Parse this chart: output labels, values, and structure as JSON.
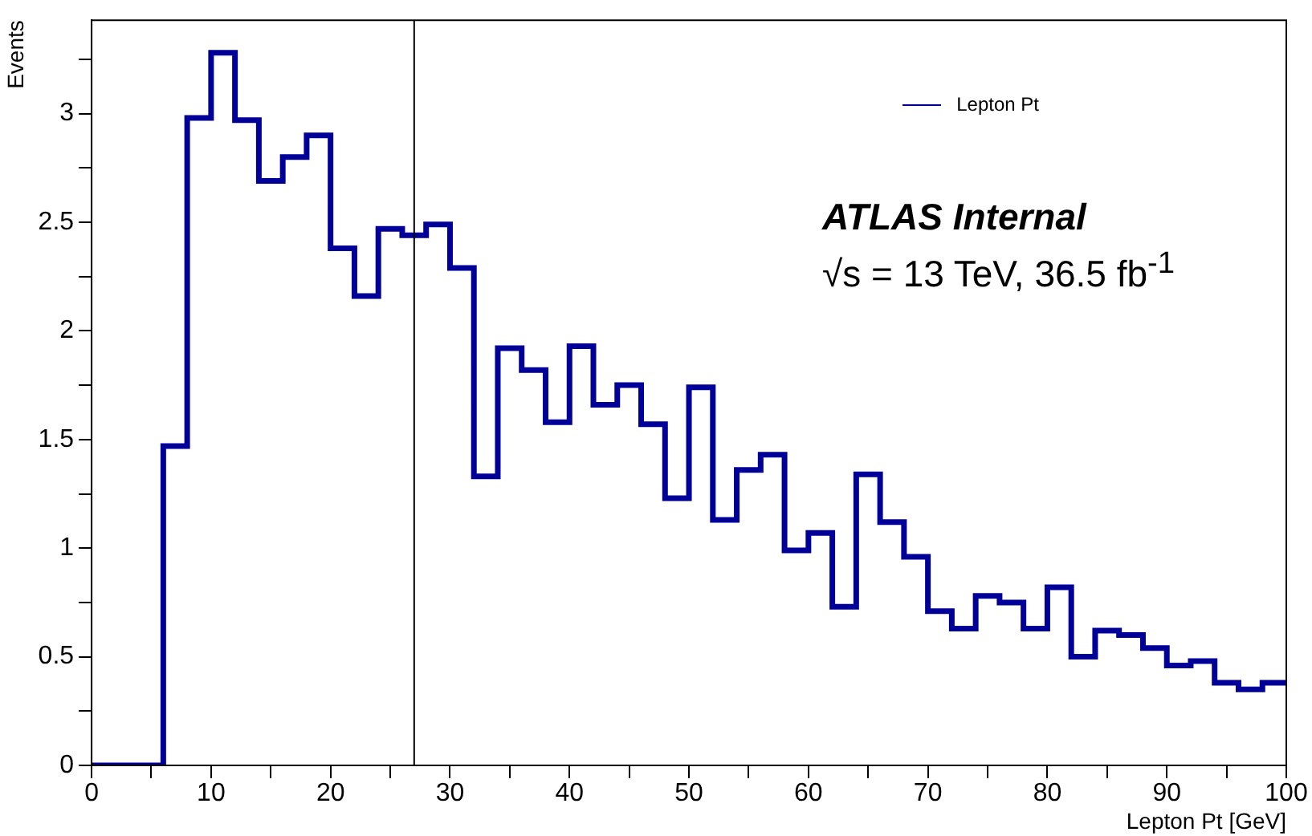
{
  "chart_data": {
    "type": "histogram",
    "xlabel": "Lepton Pt [GeV]",
    "ylabel": "Events",
    "legend": "top right",
    "grid": false,
    "annotations": [
      "ATLAS Internal",
      "√s = 13 TeV, 36.5 fb$^{-1}$"
    ],
    "bins": [
      0,
      2,
      4,
      6,
      8,
      10,
      12,
      14,
      16,
      18,
      20,
      22,
      24,
      26,
      28,
      30,
      32,
      34,
      36,
      38,
      40,
      42,
      44,
      46,
      48,
      50,
      52,
      54,
      56,
      58,
      60,
      62,
      64,
      66,
      68,
      70,
      72,
      74,
      76,
      78,
      80,
      82,
      84,
      86,
      88,
      90,
      92,
      94,
      96,
      98,
      100
    ],
    "series": [
      {
        "name": "Lepton Pt",
        "color": "#000099",
        "values": [
          0,
          0,
          0,
          1.47,
          2.98,
          3.28,
          2.97,
          2.69,
          2.8,
          2.9,
          2.38,
          2.16,
          2.47,
          2.44,
          2.49,
          2.29,
          1.33,
          1.92,
          1.82,
          1.58,
          1.93,
          1.66,
          1.75,
          1.57,
          1.23,
          1.74,
          1.13,
          1.36,
          1.43,
          0.99,
          1.07,
          0.73,
          1.34,
          1.12,
          0.96,
          0.71,
          0.63,
          0.78,
          0.75,
          0.63,
          0.82,
          0.5,
          0.62,
          0.6,
          0.54,
          0.46,
          0.48,
          0.38,
          0.35,
          0.38
        ]
      }
    ],
    "ref_lines": [
      {
        "axis": "x",
        "value": 27,
        "color": "#000000"
      }
    ],
    "xlim": [
      0,
      100
    ],
    "xticks": [
      0,
      {
        "value": 5,
        "label": null
      },
      10,
      {
        "value": 15,
        "label": null
      },
      20,
      {
        "value": 25,
        "label": null
      },
      30,
      {
        "value": 35,
        "label": null
      },
      40,
      {
        "value": 45,
        "label": null
      },
      50,
      {
        "value": 55,
        "label": null
      },
      60,
      {
        "value": 65,
        "label": null
      },
      70,
      {
        "value": 75,
        "label": null
      },
      80,
      {
        "value": 85,
        "label": null
      },
      90,
      {
        "value": 95,
        "label": null
      },
      100
    ],
    "ylim": [
      0,
      3.43
    ],
    "yticks": [
      0,
      {
        "value": 0.25,
        "label": null
      },
      0.5,
      {
        "value": 0.75,
        "label": null
      },
      1,
      {
        "value": 1.25,
        "label": null
      },
      1.5,
      {
        "value": 1.75,
        "label": null
      },
      2,
      {
        "value": 2.25,
        "label": null
      },
      2.5,
      {
        "value": 2.75,
        "label": null
      },
      3,
      {
        "value": 3.25,
        "label": null
      }
    ]
  }
}
